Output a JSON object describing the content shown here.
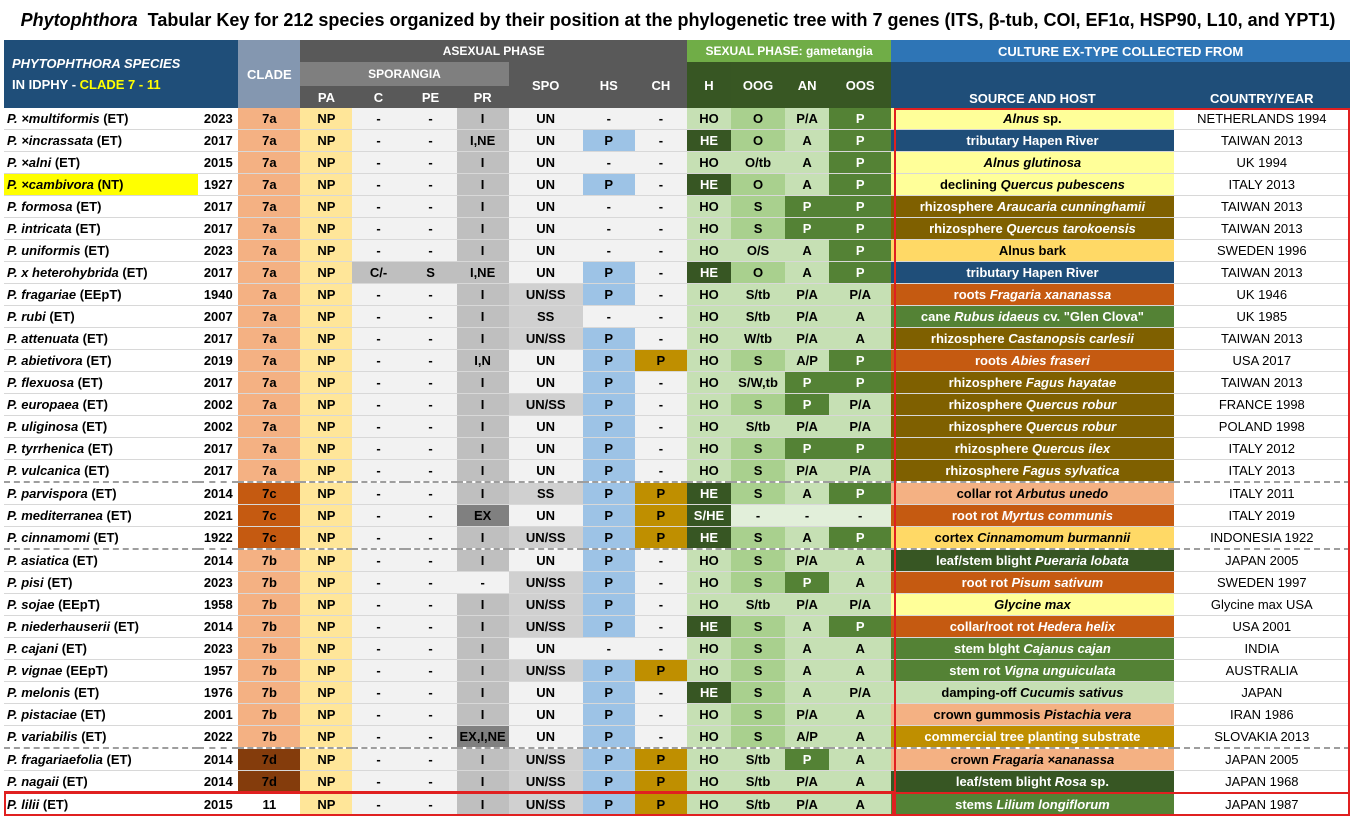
{
  "title": {
    "genus": "Phytophthora",
    "text": "Tabular Key for 212 species organized by their position at the phylogenetic tree with 7 genes (ITS, β-tub, COI, EF1α, HSP90, L10, and YPT1)"
  },
  "header": {
    "species_line1": "PHYTOPHTHORA  SPECIES",
    "species_line2a": "IN IDPHY - ",
    "species_line2b": "CLADE 7 - 11",
    "clade": "CLADE",
    "asexual": "ASEXUAL PHASE",
    "sporangia": "SPORANGIA",
    "sexual": "SEXUAL PHASE: gametangia",
    "culture": "CULTURE EX-TYPE COLLECTED FROM",
    "cols": [
      "PA",
      "C",
      "PE",
      "PR",
      "SPO",
      "HS",
      "CH",
      "H",
      "OOG",
      "AN",
      "OOS",
      "SOURCE AND HOST",
      "COUNTRY/YEAR"
    ]
  },
  "colors": {
    "clade_7a": "#f4b183",
    "clade_7c": "#c55a11",
    "clade_7b": "#f4b183",
    "clade_7d": "#843c0c",
    "pa": "#ffe699",
    "grey": "#f2f2f2",
    "pr": "#bfbfbf",
    "hs_p": "#9dc3e6",
    "ch_p": "#bf8f00",
    "light_green": "#c6e0b4",
    "mid_green": "#a9d08e",
    "dark_green": "#548235",
    "he_green": "#375623"
  },
  "rows": [
    {
      "sp": "P. ×multiformis",
      "code": "(ET)",
      "yr": "2023",
      "clade": "7a",
      "pa": "NP",
      "c": "-",
      "pe": "-",
      "pr": "I",
      "spo": "UN",
      "hs": "-",
      "ch": "-",
      "h": "HO",
      "oog": "O",
      "an": "P/A",
      "oos": "P",
      "src": [
        [
          "",
          "Alnus",
          "i"
        ],
        [
          " sp.",
          "",
          ""
        ]
      ],
      "srcBg": "#ffff99",
      "srcFg": "#000000",
      "country": "NETHERLANDS 1994"
    },
    {
      "sp": "P. ×incrassata",
      "code": "(ET)",
      "yr": "2017",
      "clade": "7a",
      "pa": "NP",
      "c": "-",
      "pe": "-",
      "pr": "I,NE",
      "spo": "UN",
      "hs": "P",
      "ch": "-",
      "h": "HE",
      "oog": "O",
      "an": "A",
      "oos": "P",
      "src": [
        [
          "tributary Hapen River",
          "",
          ""
        ]
      ],
      "srcBg": "#1f4e79",
      "srcFg": "#ffffff",
      "country": "TAIWAN 2013"
    },
    {
      "sp": "P. ×alni",
      "code": "(ET)",
      "yr": "2015",
      "clade": "7a",
      "pa": "NP",
      "c": "-",
      "pe": "-",
      "pr": "I",
      "spo": "UN",
      "hs": "-",
      "ch": "-",
      "h": "HO",
      "oog": "O/tb",
      "an": "A",
      "oos": "P",
      "src": [
        [
          "",
          "Alnus glutinosa",
          "i"
        ]
      ],
      "srcBg": "#ffff99",
      "srcFg": "#000000",
      "country": "UK 1994"
    },
    {
      "sp": "P. ×cambivora",
      "code": "(NT)",
      "yr": "1927",
      "clade": "7a",
      "pa": "NP",
      "c": "-",
      "pe": "-",
      "pr": "I",
      "spo": "UN",
      "hs": "P",
      "ch": "-",
      "h": "HE",
      "oog": "O",
      "an": "A",
      "oos": "P",
      "src": [
        [
          "declining ",
          "",
          ""
        ],
        [
          "",
          "Quercus pubescens",
          "i"
        ]
      ],
      "srcBg": "#ffff99",
      "srcFg": "#000000",
      "country": "ITALY 2013",
      "hl": true
    },
    {
      "sp": "P. formosa",
      "code": "(ET)",
      "yr": "2017",
      "clade": "7a",
      "pa": "NP",
      "c": "-",
      "pe": "-",
      "pr": "I",
      "spo": "UN",
      "hs": "-",
      "ch": "-",
      "h": "HO",
      "oog": "S",
      "an": "P",
      "oos": "P",
      "src": [
        [
          "rhizosphere ",
          "",
          ""
        ],
        [
          "",
          "Araucaria cunninghamii",
          "i"
        ]
      ],
      "srcBg": "#7f6000",
      "srcFg": "#ffffff",
      "country": "TAIWAN 2013"
    },
    {
      "sp": "P. intricata",
      "code": "(ET)",
      "yr": "2017",
      "clade": "7a",
      "pa": "NP",
      "c": "-",
      "pe": "-",
      "pr": "I",
      "spo": "UN",
      "hs": "-",
      "ch": "-",
      "h": "HO",
      "oog": "S",
      "an": "P",
      "oos": "P",
      "src": [
        [
          "rhizosphere ",
          "",
          ""
        ],
        [
          "",
          "Quercus tarokoensis",
          "i"
        ]
      ],
      "srcBg": "#7f6000",
      "srcFg": "#ffffff",
      "country": "TAIWAN 2013"
    },
    {
      "sp": "P. uniformis",
      "code": "(ET)",
      "yr": "2023",
      "clade": "7a",
      "pa": "NP",
      "c": "-",
      "pe": "-",
      "pr": "I",
      "spo": "UN",
      "hs": "-",
      "ch": "-",
      "h": "HO",
      "oog": "O/S",
      "an": "A",
      "oos": "P",
      "src": [
        [
          "Alnus bark",
          "",
          ""
        ]
      ],
      "srcBg": "#ffd966",
      "srcFg": "#000000",
      "country": "SWEDEN 1996"
    },
    {
      "sp": "P. x heterohybrida",
      "code": "(ET)",
      "yr": "2017",
      "clade": "7a",
      "pa": "NP",
      "c": "C/-",
      "pe": "S",
      "pr": "I,NE",
      "spo": "UN",
      "hs": "P",
      "ch": "-",
      "h": "HE",
      "oog": "O",
      "an": "A",
      "oos": "P",
      "src": [
        [
          "tributary Hapen River",
          "",
          ""
        ]
      ],
      "srcBg": "#1f4e79",
      "srcFg": "#ffffff",
      "country": "TAIWAN 2013",
      "cGrey": true
    },
    {
      "sp": "P. fragariae",
      "code": "(EEpT)",
      "yr": "1940",
      "clade": "7a",
      "pa": "NP",
      "c": "-",
      "pe": "-",
      "pr": "I",
      "spo": "UN/SS",
      "hs": "P",
      "ch": "-",
      "h": "HO",
      "oog": "S/tb",
      "an": "P/A",
      "oos": "P/A",
      "src": [
        [
          "roots ",
          "",
          ""
        ],
        [
          "",
          "Fragaria  xananassa",
          "i"
        ]
      ],
      "srcBg": "#c55a11",
      "srcFg": "#ffffff",
      "country": "UK 1946"
    },
    {
      "sp": "P. rubi",
      "code": "(ET)",
      "yr": "2007",
      "clade": "7a",
      "pa": "NP",
      "c": "-",
      "pe": "-",
      "pr": "I",
      "spo": "SS",
      "hs": "-",
      "ch": "-",
      "h": "HO",
      "oog": "S/tb",
      "an": "P/A",
      "oos": "A",
      "src": [
        [
          "cane ",
          "",
          ""
        ],
        [
          "",
          "Rubus idaeus",
          "i"
        ],
        [
          "  cv. \"Glen Clova\"",
          "",
          ""
        ]
      ],
      "srcBg": "#548235",
      "srcFg": "#ffffff",
      "country": "UK 1985"
    },
    {
      "sp": "P. attenuata",
      "code": "(ET)",
      "yr": "2017",
      "clade": "7a",
      "pa": "NP",
      "c": "-",
      "pe": "-",
      "pr": "I",
      "spo": "UN/SS",
      "hs": "P",
      "ch": "-",
      "h": "HO",
      "oog": "W/tb",
      "an": "P/A",
      "oos": "A",
      "src": [
        [
          "rhizosphere ",
          "",
          ""
        ],
        [
          "",
          "Castanopsis carlesii",
          "i"
        ]
      ],
      "srcBg": "#7f6000",
      "srcFg": "#ffffff",
      "country": "TAIWAN 2013"
    },
    {
      "sp": "P. abietivora",
      "code": "(ET)",
      "yr": "2019",
      "clade": "7a",
      "pa": "NP",
      "c": "-",
      "pe": "-",
      "pr": "I,N",
      "spo": "UN",
      "hs": "P",
      "ch": "P",
      "h": "HO",
      "oog": "S",
      "an": "A/P",
      "oos": "P",
      "src": [
        [
          "roots ",
          "",
          ""
        ],
        [
          "",
          "Abies fraseri",
          "i"
        ]
      ],
      "srcBg": "#c55a11",
      "srcFg": "#ffffff",
      "country": "USA 2017"
    },
    {
      "sp": "P. flexuosa",
      "code": "(ET)",
      "yr": "2017",
      "clade": "7a",
      "pa": "NP",
      "c": "-",
      "pe": "-",
      "pr": "I",
      "spo": "UN",
      "hs": "P",
      "ch": "-",
      "h": "HO",
      "oog": "S/W,tb",
      "an": "P",
      "oos": "P",
      "src": [
        [
          "rhizosphere ",
          "",
          ""
        ],
        [
          "",
          "Fagus hayatae",
          "i"
        ]
      ],
      "srcBg": "#7f6000",
      "srcFg": "#ffffff",
      "country": "TAIWAN 2013"
    },
    {
      "sp": "P. europaea",
      "code": "(ET)",
      "yr": "2002",
      "clade": "7a",
      "pa": "NP",
      "c": "-",
      "pe": "-",
      "pr": "I",
      "spo": "UN/SS",
      "hs": "P",
      "ch": "-",
      "h": "HO",
      "oog": "S",
      "an": "P",
      "oos": "P/A",
      "src": [
        [
          "rhizosphere ",
          "",
          ""
        ],
        [
          "",
          "Quercus robur",
          "i"
        ]
      ],
      "srcBg": "#7f6000",
      "srcFg": "#ffffff",
      "country": "FRANCE 1998"
    },
    {
      "sp": "P. uliginosa",
      "code": "(ET)",
      "yr": "2002",
      "clade": "7a",
      "pa": "NP",
      "c": "-",
      "pe": "-",
      "pr": "I",
      "spo": "UN",
      "hs": "P",
      "ch": "-",
      "h": "HO",
      "oog": "S/tb",
      "an": "P/A",
      "oos": "P/A",
      "src": [
        [
          "rhizosphere ",
          "",
          ""
        ],
        [
          "",
          "Quercus robur",
          "i"
        ]
      ],
      "srcBg": "#7f6000",
      "srcFg": "#ffffff",
      "country": "POLAND 1998"
    },
    {
      "sp": "P. tyrrhenica",
      "code": "(ET)",
      "yr": "2017",
      "clade": "7a",
      "pa": "NP",
      "c": "-",
      "pe": "-",
      "pr": "I",
      "spo": "UN",
      "hs": "P",
      "ch": "-",
      "h": "HO",
      "oog": "S",
      "an": "P",
      "oos": "P",
      "src": [
        [
          "rhizosphere ",
          "",
          ""
        ],
        [
          "",
          "Quercus ilex",
          "i"
        ]
      ],
      "srcBg": "#7f6000",
      "srcFg": "#ffffff",
      "country": "ITALY 2012"
    },
    {
      "sp": "P. vulcanica",
      "code": "(ET)",
      "yr": "2017",
      "clade": "7a",
      "pa": "NP",
      "c": "-",
      "pe": "-",
      "pr": "I",
      "spo": "UN",
      "hs": "P",
      "ch": "-",
      "h": "HO",
      "oog": "S",
      "an": "P/A",
      "oos": "P/A",
      "src": [
        [
          "rhizosphere ",
          "",
          ""
        ],
        [
          "",
          "Fagus sylvatica",
          "i"
        ]
      ],
      "srcBg": "#7f6000",
      "srcFg": "#ffffff",
      "country": "ITALY 2013"
    },
    {
      "sp": "P. parvispora",
      "code": "(ET)",
      "yr": "2014",
      "clade": "7c",
      "pa": "NP",
      "c": "-",
      "pe": "-",
      "pr": "I",
      "spo": "SS",
      "hs": "P",
      "ch": "P",
      "h": "HE",
      "oog": "S",
      "an": "A",
      "oos": "P",
      "src": [
        [
          "collar rot ",
          "",
          ""
        ],
        [
          "",
          "Arbutus unedo",
          "i"
        ]
      ],
      "srcBg": "#f4b183",
      "srcFg": "#000000",
      "country": "ITALY 2011",
      "sep": true
    },
    {
      "sp": "P. mediterranea",
      "code": "(ET)",
      "yr": "2021",
      "clade": "7c",
      "pa": "NP",
      "c": "-",
      "pe": "-",
      "pr": "EX",
      "spo": "UN",
      "hs": "P",
      "ch": "P",
      "h": "S/HE",
      "oog": "-",
      "an": "-",
      "oos": "-",
      "src": [
        [
          "root rot ",
          "",
          ""
        ],
        [
          "",
          "Myrtus communis",
          "i"
        ]
      ],
      "srcBg": "#c55a11",
      "srcFg": "#ffffff",
      "country": "ITALY 2019",
      "prDark": true
    },
    {
      "sp": "P. cinnamomi",
      "code": "(ET)",
      "yr": "1922",
      "clade": "7c",
      "pa": "NP",
      "c": "-",
      "pe": "-",
      "pr": "I",
      "spo": "UN/SS",
      "hs": "P",
      "ch": "P",
      "h": "HE",
      "oog": "S",
      "an": "A",
      "oos": "P",
      "src": [
        [
          "cortex ",
          "",
          ""
        ],
        [
          "",
          "Cinnamomum burmannii",
          "i"
        ]
      ],
      "srcBg": "#ffd966",
      "srcFg": "#000000",
      "country": "INDONESIA 1922"
    },
    {
      "sp": "P. asiatica",
      "code": "(ET)",
      "yr": "2014",
      "clade": "7b",
      "pa": "NP",
      "c": "-",
      "pe": "-",
      "pr": "I",
      "spo": "UN",
      "hs": "P",
      "ch": "-",
      "h": "HO",
      "oog": "S",
      "an": "P/A",
      "oos": "A",
      "src": [
        [
          "leaf/stem blight ",
          "",
          ""
        ],
        [
          "",
          "Pueraria lobata",
          "i"
        ]
      ],
      "srcBg": "#375623",
      "srcFg": "#ffffff",
      "country": "JAPAN 2005",
      "sep": true
    },
    {
      "sp": "P. pisi",
      "code": "(ET)",
      "yr": "2023",
      "clade": "7b",
      "pa": "NP",
      "c": "-",
      "pe": "-",
      "pr": "-",
      "spo": "UN/SS",
      "hs": "P",
      "ch": "-",
      "h": "HO",
      "oog": "S",
      "an": "P",
      "oos": "A",
      "src": [
        [
          "root rot ",
          "",
          ""
        ],
        [
          "",
          "Pisum sativum",
          "i"
        ]
      ],
      "srcBg": "#c55a11",
      "srcFg": "#ffffff",
      "country": "SWEDEN 1997",
      "prLight": true
    },
    {
      "sp": "P. sojae",
      "code": "(EEpT)",
      "yr": "1958",
      "clade": "7b",
      "pa": "NP",
      "c": "-",
      "pe": "-",
      "pr": "I",
      "spo": "UN/SS",
      "hs": "P",
      "ch": "-",
      "h": "HO",
      "oog": "S/tb",
      "an": "P/A",
      "oos": "P/A",
      "src": [
        [
          "",
          "Glycine max",
          "i"
        ]
      ],
      "srcBg": "#ffff99",
      "srcFg": "#000000",
      "country": "Glycine max USA"
    },
    {
      "sp": "P. niederhauserii",
      "code": "(ET)",
      "yr": "2014",
      "clade": "7b",
      "pa": "NP",
      "c": "-",
      "pe": "-",
      "pr": "I",
      "spo": "UN/SS",
      "hs": "P",
      "ch": "-",
      "h": "HE",
      "oog": "S",
      "an": "A",
      "oos": "P",
      "src": [
        [
          "collar/root rot ",
          "",
          ""
        ],
        [
          "",
          "Hedera helix",
          "i"
        ]
      ],
      "srcBg": "#c55a11",
      "srcFg": "#ffffff",
      "country": "USA 2001"
    },
    {
      "sp": "P. cajani",
      "code": "(ET)",
      "yr": "2023",
      "clade": "7b",
      "pa": "NP",
      "c": "-",
      "pe": "-",
      "pr": "I",
      "spo": "UN",
      "hs": "-",
      "ch": "-",
      "h": "HO",
      "oog": "S",
      "an": "A",
      "oos": "A",
      "src": [
        [
          "stem blght ",
          "",
          ""
        ],
        [
          "",
          "Cajanus cajan",
          "i"
        ]
      ],
      "srcBg": "#548235",
      "srcFg": "#ffffff",
      "country": "INDIA"
    },
    {
      "sp": "P. vignae",
      "code": "(EEpT)",
      "yr": "1957",
      "clade": "7b",
      "pa": "NP",
      "c": "-",
      "pe": "-",
      "pr": "I",
      "spo": "UN/SS",
      "hs": "P",
      "ch": "P",
      "h": "HO",
      "oog": "S",
      "an": "A",
      "oos": "A",
      "src": [
        [
          "stem rot ",
          "",
          ""
        ],
        [
          "",
          "Vigna unguiculata",
          "i"
        ]
      ],
      "srcBg": "#548235",
      "srcFg": "#ffffff",
      "country": "AUSTRALIA"
    },
    {
      "sp": "P. melonis",
      "code": "(ET)",
      "yr": "1976",
      "clade": "7b",
      "pa": "NP",
      "c": "-",
      "pe": "-",
      "pr": "I",
      "spo": "UN",
      "hs": "P",
      "ch": "-",
      "h": "HE",
      "oog": "S",
      "an": "A",
      "oos": "P/A",
      "src": [
        [
          "damping-off ",
          "",
          ""
        ],
        [
          "",
          "Cucumis sativus",
          "i"
        ]
      ],
      "srcBg": "#c6e0b4",
      "srcFg": "#000000",
      "country": "JAPAN"
    },
    {
      "sp": "P. pistaciae",
      "code": "(ET)",
      "yr": "2001",
      "clade": "7b",
      "pa": "NP",
      "c": "-",
      "pe": "-",
      "pr": "I",
      "spo": "UN",
      "hs": "P",
      "ch": "-",
      "h": "HO",
      "oog": "S",
      "an": "P/A",
      "oos": "A",
      "src": [
        [
          "crown gummosis ",
          "",
          ""
        ],
        [
          "",
          "Pistachia vera",
          "i"
        ]
      ],
      "srcBg": "#f4b183",
      "srcFg": "#000000",
      "country": "IRAN 1986"
    },
    {
      "sp": "P. variabilis",
      "code": "(ET)",
      "yr": "2022",
      "clade": "7b",
      "pa": "NP",
      "c": "-",
      "pe": "-",
      "pr": "EX,I,NE",
      "spo": "UN",
      "hs": "P",
      "ch": "-",
      "h": "HO",
      "oog": "S",
      "an": "A/P",
      "oos": "A",
      "src": [
        [
          "commercial tree planting substrate",
          "",
          ""
        ]
      ],
      "srcBg": "#bf8f00",
      "srcFg": "#ffffff",
      "country": "SLOVAKIA 2013",
      "prDark": true
    },
    {
      "sp": "P. fragariaefolia",
      "code": "(ET)",
      "yr": "2014",
      "clade": "7d",
      "pa": "NP",
      "c": "-",
      "pe": "-",
      "pr": "I",
      "spo": "UN/SS",
      "hs": "P",
      "ch": "P",
      "h": "HO",
      "oog": "S/tb",
      "an": "P",
      "oos": "A",
      "src": [
        [
          "crown ",
          "",
          ""
        ],
        [
          "",
          "Fragaria ×ananassa",
          "i"
        ]
      ],
      "srcBg": "#f4b183",
      "srcFg": "#000000",
      "country": "JAPAN 2005",
      "sep": true
    },
    {
      "sp": "P. nagaii",
      "code": "(ET)",
      "yr": "2014",
      "clade": "7d",
      "pa": "NP",
      "c": "-",
      "pe": "-",
      "pr": "I",
      "spo": "UN/SS",
      "hs": "P",
      "ch": "P",
      "h": "HO",
      "oog": "S/tb",
      "an": "P/A",
      "oos": "A",
      "src": [
        [
          "leaf/stem blight ",
          "",
          ""
        ],
        [
          "",
          "Rosa",
          "i"
        ],
        [
          " sp.",
          "",
          ""
        ]
      ],
      "srcBg": "#375623",
      "srcFg": "#ffffff",
      "country": "JAPAN 1968"
    },
    {
      "sp": "P. lilii",
      "code": "(ET)",
      "yr": "2015",
      "clade": "11",
      "pa": "NP",
      "c": "-",
      "pe": "-",
      "pr": "I",
      "spo": "UN/SS",
      "hs": "P",
      "ch": "P",
      "h": "HO",
      "oog": "S/tb",
      "an": "P/A",
      "oos": "A",
      "src": [
        [
          "stems ",
          "",
          ""
        ],
        [
          "",
          "Lilium longiflorum",
          "i"
        ]
      ],
      "srcBg": "#548235",
      "srcFg": "#ffffff",
      "country": "JAPAN 1987",
      "last": true
    }
  ]
}
